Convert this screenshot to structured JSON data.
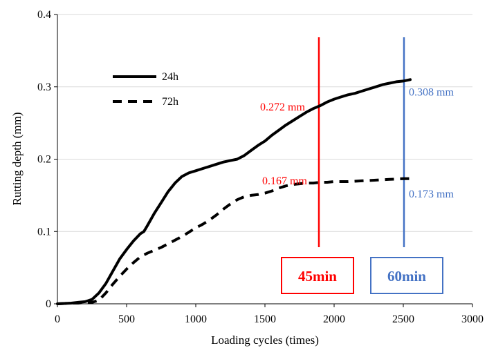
{
  "chart_data": {
    "type": "line",
    "xlabel": "Loading cycles (times)",
    "ylabel": "Rutting depth (mm)",
    "xlim": [
      0,
      3000
    ],
    "ylim": [
      0,
      0.4
    ],
    "x_ticks": [
      0,
      500,
      1000,
      1500,
      2000,
      2500,
      3000
    ],
    "x_tick_labels": [
      "0",
      "500",
      "1000",
      "1500",
      "2000",
      "2500",
      "3000"
    ],
    "y_ticks": [
      0,
      0.1,
      0.2,
      0.3,
      0.4
    ],
    "y_tick_labels": [
      "0",
      "0.1",
      "0.2",
      "0.3",
      "0.4"
    ],
    "grid": "horizontal",
    "legend_position": "top-left",
    "series": [
      {
        "name": "24h",
        "style": "solid",
        "color": "#000000",
        "points": [
          [
            0,
            0
          ],
          [
            100,
            0.001
          ],
          [
            150,
            0.002
          ],
          [
            200,
            0.003
          ],
          [
            250,
            0.006
          ],
          [
            300,
            0.015
          ],
          [
            350,
            0.028
          ],
          [
            400,
            0.045
          ],
          [
            450,
            0.062
          ],
          [
            500,
            0.075
          ],
          [
            550,
            0.087
          ],
          [
            600,
            0.097
          ],
          [
            625,
            0.1
          ],
          [
            650,
            0.108
          ],
          [
            700,
            0.125
          ],
          [
            750,
            0.14
          ],
          [
            800,
            0.155
          ],
          [
            850,
            0.167
          ],
          [
            900,
            0.176
          ],
          [
            950,
            0.181
          ],
          [
            1000,
            0.184
          ],
          [
            1050,
            0.187
          ],
          [
            1100,
            0.19
          ],
          [
            1150,
            0.193
          ],
          [
            1200,
            0.196
          ],
          [
            1250,
            0.198
          ],
          [
            1300,
            0.2
          ],
          [
            1350,
            0.205
          ],
          [
            1400,
            0.212
          ],
          [
            1450,
            0.219
          ],
          [
            1500,
            0.225
          ],
          [
            1550,
            0.233
          ],
          [
            1600,
            0.24
          ],
          [
            1650,
            0.247
          ],
          [
            1700,
            0.253
          ],
          [
            1750,
            0.259
          ],
          [
            1800,
            0.265
          ],
          [
            1850,
            0.27
          ],
          [
            1900,
            0.274
          ],
          [
            1950,
            0.279
          ],
          [
            2000,
            0.283
          ],
          [
            2050,
            0.286
          ],
          [
            2100,
            0.289
          ],
          [
            2150,
            0.291
          ],
          [
            2200,
            0.294
          ],
          [
            2250,
            0.297
          ],
          [
            2300,
            0.3
          ],
          [
            2350,
            0.303
          ],
          [
            2400,
            0.305
          ],
          [
            2450,
            0.307
          ],
          [
            2500,
            0.308
          ],
          [
            2550,
            0.31
          ]
        ]
      },
      {
        "name": "72h",
        "style": "dashed",
        "color": "#000000",
        "points": [
          [
            0,
            0
          ],
          [
            100,
            0.001
          ],
          [
            150,
            0.001
          ],
          [
            200,
            0.002
          ],
          [
            250,
            0.002
          ],
          [
            300,
            0.005
          ],
          [
            350,
            0.015
          ],
          [
            400,
            0.027
          ],
          [
            450,
            0.038
          ],
          [
            500,
            0.048
          ],
          [
            550,
            0.057
          ],
          [
            600,
            0.065
          ],
          [
            650,
            0.07
          ],
          [
            700,
            0.074
          ],
          [
            750,
            0.078
          ],
          [
            800,
            0.083
          ],
          [
            850,
            0.088
          ],
          [
            900,
            0.093
          ],
          [
            950,
            0.099
          ],
          [
            1000,
            0.105
          ],
          [
            1050,
            0.11
          ],
          [
            1100,
            0.116
          ],
          [
            1150,
            0.123
          ],
          [
            1200,
            0.131
          ],
          [
            1250,
            0.138
          ],
          [
            1300,
            0.144
          ],
          [
            1350,
            0.148
          ],
          [
            1400,
            0.15
          ],
          [
            1450,
            0.151
          ],
          [
            1500,
            0.153
          ],
          [
            1550,
            0.156
          ],
          [
            1600,
            0.16
          ],
          [
            1650,
            0.163
          ],
          [
            1700,
            0.165
          ],
          [
            1750,
            0.166
          ],
          [
            1800,
            0.167
          ],
          [
            1850,
            0.167
          ],
          [
            1900,
            0.168
          ],
          [
            1950,
            0.168
          ],
          [
            2000,
            0.169
          ],
          [
            2100,
            0.169
          ],
          [
            2200,
            0.17
          ],
          [
            2300,
            0.171
          ],
          [
            2400,
            0.172
          ],
          [
            2500,
            0.173
          ],
          [
            2550,
            0.173
          ]
        ]
      }
    ],
    "annotations": [
      {
        "text": "0.272 mm",
        "x": 1890,
        "y": 0.272,
        "color": "#ff0000"
      },
      {
        "text": "0.167 mm",
        "x": 1890,
        "y": 0.167,
        "color": "#ff0000"
      },
      {
        "text": "0.308 mm",
        "x": 2505,
        "y": 0.308,
        "color": "#4472c4"
      },
      {
        "text": "0.173 mm",
        "x": 2505,
        "y": 0.173,
        "color": "#4472c4"
      }
    ],
    "markers": [
      {
        "label": "45min",
        "x": 1890,
        "color": "#ff0000"
      },
      {
        "label": "60min",
        "x": 2505,
        "color": "#4472c4"
      }
    ]
  }
}
